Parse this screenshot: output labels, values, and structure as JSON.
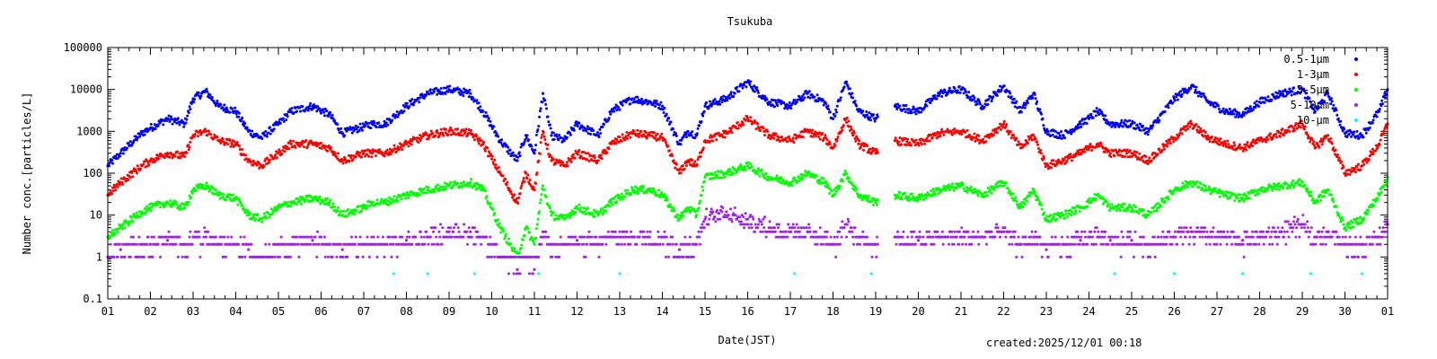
{
  "chart_data": {
    "type": "scatter",
    "title": "Tsukuba",
    "xlabel": "Date(JST)",
    "ylabel": "Number conc.[particles/L]",
    "yscale": "log",
    "ylim": [
      0.1,
      100000
    ],
    "xlim": [
      0,
      30
    ],
    "y_ticks": [
      "0.1",
      "1",
      "10",
      "100",
      "1000",
      "10000",
      "100000"
    ],
    "x_ticks": [
      "01",
      "02",
      "03",
      "04",
      "05",
      "06",
      "07",
      "08",
      "09",
      "10",
      "11",
      "12",
      "13",
      "14",
      "15",
      "16",
      "17",
      "18",
      "19",
      "20",
      "21",
      "22",
      "23",
      "24",
      "25",
      "26",
      "27",
      "28",
      "29",
      "30",
      "01"
    ],
    "legend_position": "top-right",
    "data_gap": [
      18.05,
      18.45
    ],
    "series": [
      {
        "name": "0.5-1μm",
        "color": "#0000ff",
        "x": [
          0,
          0.3,
          0.8,
          1,
          1.4,
          1.8,
          2,
          2.3,
          2.6,
          3,
          3.3,
          3.6,
          4,
          4.3,
          4.8,
          5.2,
          5.5,
          6,
          6.2,
          6.5,
          7,
          7.5,
          8,
          8.5,
          8.8,
          9.2,
          9.6,
          9.8,
          10,
          10.2,
          10.4,
          10.7,
          11,
          11.5,
          11.8,
          12.3,
          12.7,
          13,
          13.4,
          13.6,
          13.8,
          14,
          14.5,
          15,
          15.5,
          16,
          16.4,
          16.8,
          17,
          17.3,
          17.6,
          18,
          18.45,
          19,
          19.5,
          20,
          20.5,
          21,
          21.4,
          21.7,
          22,
          22.4,
          22.8,
          23,
          23.2,
          23.5,
          24,
          24.4,
          25,
          25.4,
          25.8,
          26.2,
          26.6,
          27,
          27.5,
          28,
          28.3,
          28.6,
          29,
          29.4,
          29.8,
          30
        ],
        "y": [
          150,
          300,
          900,
          1200,
          2000,
          1500,
          6000,
          9000,
          4000,
          3000,
          1000,
          700,
          1500,
          3000,
          4000,
          2500,
          900,
          1300,
          1500,
          1500,
          4000,
          8000,
          10000,
          8000,
          3000,
          600,
          200,
          800,
          300,
          8000,
          800,
          600,
          1500,
          800,
          3000,
          6000,
          5000,
          4000,
          500,
          1000,
          800,
          4000,
          6000,
          15000,
          5000,
          4000,
          8000,
          5000,
          2000,
          15000,
          3000,
          2000,
          4000,
          3000,
          8000,
          10000,
          4000,
          12000,
          3000,
          8000,
          1000,
          800,
          1500,
          2000,
          3000,
          1500,
          1500,
          1000,
          6000,
          12000,
          5000,
          3000,
          2500,
          5000,
          8000,
          10000,
          3000,
          8000,
          900,
          800,
          3000,
          10000
        ]
      },
      {
        "name": "1-3μm",
        "color": "#ff0000",
        "x": [
          0,
          0.3,
          0.8,
          1,
          1.4,
          1.8,
          2,
          2.3,
          2.6,
          3,
          3.3,
          3.6,
          4,
          4.3,
          4.8,
          5.2,
          5.5,
          6,
          6.2,
          6.5,
          7,
          7.5,
          8,
          8.5,
          8.8,
          9.2,
          9.6,
          9.8,
          10,
          10.2,
          10.4,
          10.7,
          11,
          11.5,
          11.8,
          12.3,
          12.7,
          13,
          13.4,
          13.6,
          13.8,
          14,
          14.5,
          15,
          15.5,
          16,
          16.4,
          16.8,
          17,
          17.3,
          17.6,
          18,
          18.45,
          19,
          19.5,
          20,
          20.5,
          21,
          21.4,
          21.7,
          22,
          22.4,
          22.8,
          23,
          23.2,
          23.5,
          24,
          24.4,
          25,
          25.4,
          25.8,
          26.2,
          26.6,
          27,
          27.5,
          28,
          28.3,
          28.6,
          29,
          29.4,
          29.8,
          30
        ],
        "y": [
          30,
          60,
          150,
          200,
          300,
          250,
          800,
          1000,
          600,
          500,
          200,
          150,
          300,
          500,
          500,
          400,
          200,
          300,
          300,
          300,
          500,
          800,
          1000,
          900,
          500,
          100,
          20,
          100,
          40,
          1000,
          200,
          150,
          300,
          200,
          500,
          900,
          800,
          700,
          100,
          200,
          150,
          600,
          900,
          2000,
          800,
          600,
          1000,
          700,
          400,
          2000,
          500,
          300,
          600,
          500,
          900,
          1000,
          600,
          1500,
          400,
          800,
          150,
          200,
          300,
          400,
          500,
          300,
          300,
          200,
          700,
          1500,
          700,
          500,
          400,
          600,
          900,
          1500,
          400,
          800,
          100,
          150,
          500,
          1500
        ]
      },
      {
        "name": "3-5μm",
        "color": "#00ff00",
        "x": [
          0,
          0.3,
          0.8,
          1,
          1.4,
          1.8,
          2,
          2.3,
          2.6,
          3,
          3.3,
          3.6,
          4,
          4.3,
          4.8,
          5.2,
          5.5,
          6,
          6.2,
          6.5,
          7,
          7.5,
          8,
          8.5,
          8.8,
          9.2,
          9.6,
          9.8,
          10,
          10.2,
          10.4,
          10.7,
          11,
          11.5,
          11.8,
          12.3,
          12.7,
          13,
          13.4,
          13.6,
          13.8,
          14,
          14.5,
          15,
          15.5,
          16,
          16.4,
          16.8,
          17,
          17.3,
          17.6,
          18,
          18.45,
          19,
          19.5,
          20,
          20.5,
          21,
          21.4,
          21.7,
          22,
          22.4,
          22.8,
          23,
          23.2,
          23.5,
          24,
          24.4,
          25,
          25.4,
          25.8,
          26.2,
          26.6,
          27,
          27.5,
          28,
          28.3,
          28.6,
          29,
          29.4,
          29.8,
          30
        ],
        "y": [
          3,
          5,
          12,
          15,
          20,
          15,
          40,
          50,
          30,
          25,
          10,
          8,
          15,
          20,
          25,
          20,
          10,
          15,
          20,
          20,
          30,
          40,
          50,
          60,
          40,
          5,
          1,
          5,
          2,
          50,
          10,
          8,
          15,
          10,
          20,
          40,
          40,
          30,
          8,
          15,
          10,
          80,
          100,
          150,
          80,
          60,
          100,
          60,
          30,
          100,
          30,
          20,
          30,
          25,
          40,
          50,
          30,
          60,
          15,
          40,
          8,
          10,
          15,
          20,
          30,
          15,
          15,
          10,
          40,
          60,
          40,
          30,
          25,
          40,
          50,
          60,
          20,
          40,
          5,
          8,
          30,
          80
        ]
      },
      {
        "name": "5-10μm",
        "color": "#a020f0",
        "x": [
          0,
          0.3,
          0.8,
          1,
          1.4,
          1.8,
          2,
          2.3,
          2.6,
          3,
          3.3,
          3.6,
          4,
          4.3,
          4.8,
          5.2,
          5.5,
          6,
          6.2,
          6.5,
          7,
          7.5,
          8,
          8.5,
          8.8,
          9.2,
          9.6,
          9.8,
          10,
          10.2,
          10.4,
          10.7,
          11,
          11.5,
          11.8,
          12.3,
          12.7,
          13,
          13.4,
          13.6,
          13.8,
          14,
          14.5,
          15,
          15.5,
          16,
          16.4,
          16.8,
          17,
          17.3,
          17.6,
          18,
          18.45,
          19,
          19.5,
          20,
          20.5,
          21,
          21.4,
          21.7,
          22,
          22.4,
          22.8,
          23,
          23.2,
          23.5,
          24,
          24.4,
          25,
          25.4,
          25.8,
          26.2,
          26.6,
          27,
          27.5,
          28,
          28.3,
          28.6,
          29,
          29.4,
          29.8,
          30
        ],
        "y": [
          1,
          1.5,
          2,
          2,
          2.5,
          2,
          3,
          3,
          2,
          2,
          1.5,
          1,
          2,
          2,
          2.5,
          2,
          1.5,
          2,
          2,
          2,
          2.5,
          3,
          4,
          4,
          3,
          1,
          0.5,
          1,
          0.5,
          4,
          2,
          2,
          2.5,
          2,
          3,
          3,
          3,
          3,
          1.5,
          2,
          2,
          8,
          12,
          8,
          5,
          4,
          4,
          3,
          2,
          6,
          3,
          2,
          3,
          2.5,
          3,
          3,
          3,
          4,
          2,
          3,
          1.5,
          2,
          2.5,
          3,
          3,
          2.5,
          2.5,
          2,
          3,
          4,
          3,
          3,
          2.5,
          3,
          4,
          6,
          3,
          4,
          2,
          2,
          3,
          6
        ]
      },
      {
        "name": "10-μm",
        "color": "#00ffff",
        "x": [
          6.7,
          7.5,
          8.6,
          10.1,
          12.0,
          16.1,
          17.9,
          23.6,
          25.0,
          26.6,
          28.2,
          29.4
        ],
        "y": [
          0.4,
          0.4,
          0.4,
          0.4,
          0.4,
          0.4,
          0.4,
          0.4,
          0.4,
          0.4,
          0.4,
          0.4
        ]
      }
    ]
  },
  "footer": {
    "created": "created:2025/12/01 00:18"
  }
}
